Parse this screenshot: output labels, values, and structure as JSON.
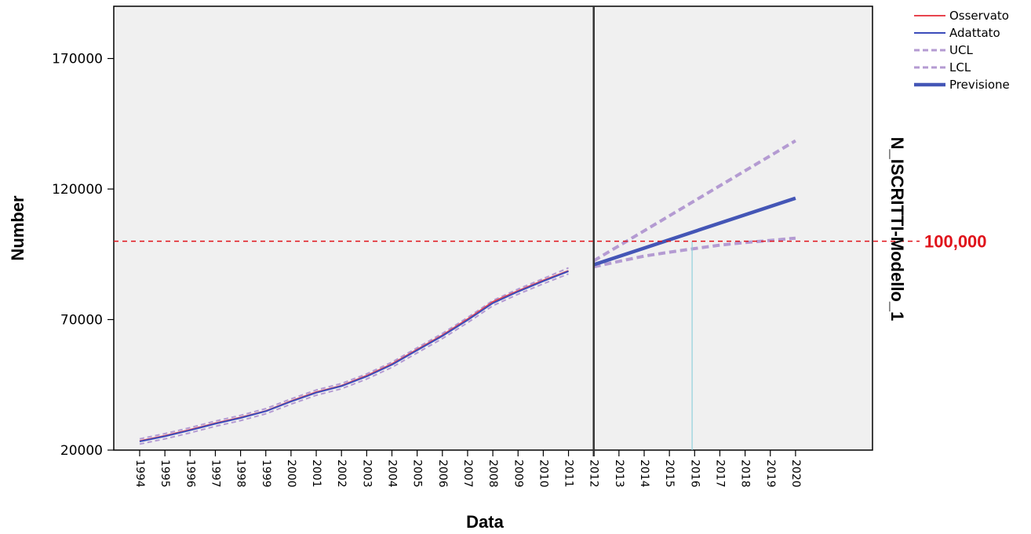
{
  "chart_data": {
    "type": "line",
    "xlabel": "Data",
    "ylabel": "Number",
    "side_title": "N_ISCRITTI-Modello_1",
    "x": [
      "1994",
      "1995",
      "1996",
      "1997",
      "1998",
      "1999",
      "2000",
      "2001",
      "2002",
      "2003",
      "2004",
      "2005",
      "2006",
      "2007",
      "2008",
      "2009",
      "2010",
      "2011",
      "2012",
      "2013",
      "2014",
      "2015",
      "2016",
      "2017",
      "2018",
      "2019",
      "2020"
    ],
    "ylim": [
      20000,
      190000
    ],
    "yticks": [
      20000,
      70000,
      120000,
      170000
    ],
    "ytick_labels": [
      "20000",
      "70000",
      "120000",
      "170000"
    ],
    "grid": false,
    "legend_position": "top-right",
    "forecast_start": "2012",
    "reference_line": {
      "value": 100000,
      "label": "100,000",
      "color": "#e0131b"
    },
    "reference_marker_x": 2015.9,
    "series": [
      {
        "name": "Osservato",
        "color": "#e8444e",
        "style": "solid",
        "x": [
          1994,
          1995,
          1996,
          1997,
          1998,
          1999,
          2000,
          2001,
          2002,
          2003,
          2004,
          2005,
          2006,
          2007,
          2008,
          2009,
          2010,
          2011
        ],
        "values": [
          23500,
          25500,
          27800,
          30300,
          32500,
          35000,
          38800,
          42200,
          44700,
          48500,
          53000,
          58500,
          64000,
          70200,
          76800,
          81000,
          85000,
          88700
        ]
      },
      {
        "name": "Adattato",
        "color": "#3b4cbb",
        "style": "solid",
        "x": [
          1994,
          1995,
          1996,
          1997,
          1998,
          1999,
          2000,
          2001,
          2002,
          2003,
          2004,
          2005,
          2006,
          2007,
          2008,
          2009,
          2010,
          2011
        ],
        "values": [
          23300,
          25300,
          27600,
          30100,
          32300,
          34900,
          38600,
          42000,
          44500,
          48200,
          52700,
          58200,
          63700,
          69800,
          76300,
          80700,
          84700,
          88500
        ]
      },
      {
        "name": "UCL",
        "color": "#b49bd2",
        "style": "dashed",
        "x": [
          1994,
          1995,
          1996,
          1997,
          1998,
          1999,
          2000,
          2001,
          2002,
          2003,
          2004,
          2005,
          2006,
          2007,
          2008,
          2009,
          2010,
          2011,
          2012,
          2020
        ],
        "values": [
          24300,
          26300,
          28600,
          31100,
          33300,
          35900,
          39600,
          43000,
          45500,
          49200,
          53700,
          59200,
          64700,
          70800,
          77300,
          81700,
          85700,
          89800,
          92500,
          138500
        ]
      },
      {
        "name": "LCL",
        "color": "#b49bd2",
        "style": "dashed",
        "x": [
          1994,
          1995,
          1996,
          1997,
          1998,
          1999,
          2000,
          2001,
          2002,
          2003,
          2004,
          2005,
          2006,
          2007,
          2008,
          2009,
          2010,
          2011,
          2012,
          2013,
          2014,
          2015,
          2016,
          2017,
          2018,
          2019,
          2020
        ],
        "values": [
          22300,
          24300,
          26600,
          29100,
          31300,
          33900,
          37600,
          41000,
          43500,
          47200,
          51700,
          57200,
          62700,
          68800,
          75300,
          79700,
          83700,
          87500,
          90200,
          92300,
          94300,
          95800,
          97200,
          98500,
          99500,
          100300,
          101200
        ]
      },
      {
        "name": "Previsione",
        "color": "#4456b6",
        "style": "thick",
        "x": [
          2012,
          2020
        ],
        "values": [
          91000,
          116500
        ]
      }
    ]
  }
}
